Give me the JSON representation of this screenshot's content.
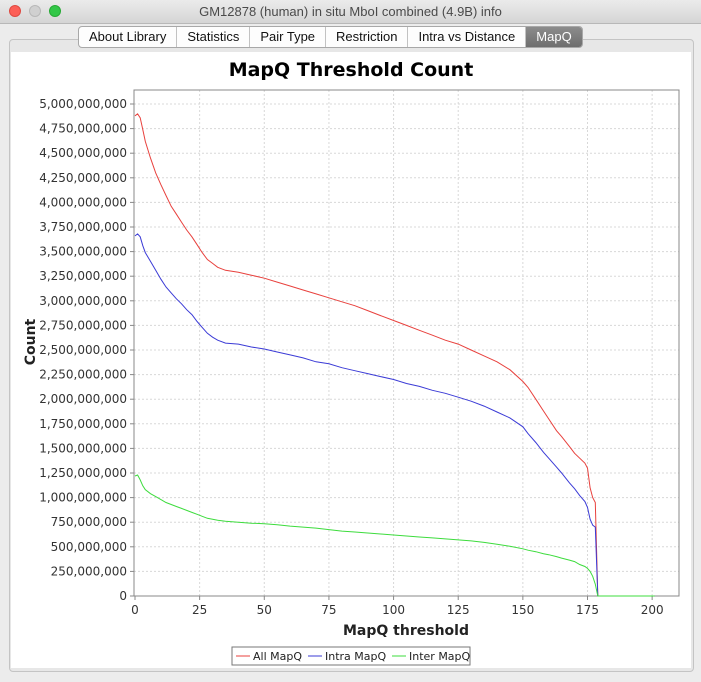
{
  "window": {
    "title": "GM12878 (human)  in situ MboI combined (4.9B) info"
  },
  "tabs": [
    {
      "label": "About Library"
    },
    {
      "label": "Statistics"
    },
    {
      "label": "Pair Type"
    },
    {
      "label": "Restriction"
    },
    {
      "label": "Intra vs Distance"
    },
    {
      "label": "MapQ",
      "active": true
    }
  ],
  "colors": {
    "all": "#e8413d",
    "intra": "#3b3bd6",
    "inter": "#3ddc3d"
  },
  "chart_data": {
    "type": "line",
    "title": "MapQ Threshold Count",
    "xlabel": "MapQ threshold",
    "ylabel": "Count",
    "xlim": [
      0,
      210
    ],
    "ylim": [
      0,
      5000000000
    ],
    "grid": true,
    "legend": "bottom",
    "xticks": [
      "0",
      "25",
      "50",
      "75",
      "100",
      "125",
      "150",
      "175",
      "200"
    ],
    "yticks": [
      "0",
      "250,000,000",
      "500,000,000",
      "750,000,000",
      "1,000,000,000",
      "1,250,000,000",
      "1,500,000,000",
      "1,750,000,000",
      "2,000,000,000",
      "2,250,000,000",
      "2,500,000,000",
      "2,750,000,000",
      "3,000,000,000",
      "3,250,000,000",
      "3,500,000,000",
      "3,750,000,000",
      "4,000,000,000",
      "4,250,000,000",
      "4,500,000,000",
      "4,750,000,000",
      "5,000,000,000"
    ],
    "series": [
      {
        "name": "All MapQ",
        "x": [
          0,
          1,
          2,
          3,
          4,
          6,
          8,
          10,
          12,
          14,
          16,
          18,
          20,
          22,
          24,
          26,
          28,
          30,
          32,
          35,
          40,
          45,
          50,
          55,
          60,
          65,
          70,
          75,
          80,
          85,
          90,
          95,
          100,
          105,
          110,
          115,
          120,
          125,
          130,
          135,
          140,
          145,
          150,
          152,
          155,
          158,
          160,
          163,
          165,
          168,
          170,
          172,
          174,
          175,
          176,
          177,
          178,
          179,
          180,
          185,
          200,
          201
        ],
        "y": [
          4880000000,
          4900000000,
          4860000000,
          4740000000,
          4620000000,
          4450000000,
          4300000000,
          4180000000,
          4070000000,
          3960000000,
          3880000000,
          3800000000,
          3720000000,
          3650000000,
          3570000000,
          3490000000,
          3420000000,
          3380000000,
          3340000000,
          3310000000,
          3290000000,
          3260000000,
          3230000000,
          3190000000,
          3150000000,
          3110000000,
          3070000000,
          3030000000,
          2990000000,
          2950000000,
          2900000000,
          2850000000,
          2800000000,
          2750000000,
          2700000000,
          2650000000,
          2600000000,
          2560000000,
          2500000000,
          2440000000,
          2380000000,
          2300000000,
          2180000000,
          2120000000,
          2000000000,
          1880000000,
          1800000000,
          1680000000,
          1620000000,
          1520000000,
          1450000000,
          1400000000,
          1350000000,
          1300000000,
          1100000000,
          1000000000,
          950000000,
          0,
          0,
          0,
          0,
          0
        ]
      },
      {
        "name": "Intra MapQ",
        "x": [
          0,
          1,
          2,
          3,
          4,
          6,
          8,
          10,
          12,
          14,
          16,
          18,
          20,
          22,
          24,
          26,
          28,
          30,
          32,
          35,
          40,
          45,
          50,
          55,
          60,
          65,
          70,
          75,
          80,
          85,
          90,
          95,
          100,
          105,
          110,
          115,
          120,
          125,
          130,
          135,
          140,
          145,
          150,
          152,
          155,
          158,
          160,
          163,
          165,
          168,
          170,
          172,
          174,
          175,
          176,
          177,
          178,
          179,
          180,
          185,
          200,
          201
        ],
        "y": [
          3660000000,
          3680000000,
          3650000000,
          3560000000,
          3490000000,
          3400000000,
          3310000000,
          3220000000,
          3140000000,
          3080000000,
          3020000000,
          2970000000,
          2910000000,
          2860000000,
          2790000000,
          2730000000,
          2670000000,
          2630000000,
          2600000000,
          2570000000,
          2560000000,
          2530000000,
          2510000000,
          2480000000,
          2450000000,
          2420000000,
          2380000000,
          2360000000,
          2320000000,
          2290000000,
          2260000000,
          2230000000,
          2200000000,
          2160000000,
          2130000000,
          2090000000,
          2060000000,
          2020000000,
          1980000000,
          1930000000,
          1870000000,
          1810000000,
          1720000000,
          1650000000,
          1560000000,
          1460000000,
          1400000000,
          1310000000,
          1250000000,
          1150000000,
          1090000000,
          1020000000,
          960000000,
          900000000,
          780000000,
          720000000,
          700000000,
          0,
          0,
          0,
          0,
          0
        ]
      },
      {
        "name": "Inter MapQ",
        "x": [
          0,
          1,
          2,
          3,
          4,
          6,
          8,
          10,
          12,
          14,
          16,
          18,
          20,
          22,
          24,
          26,
          28,
          30,
          32,
          35,
          40,
          45,
          50,
          55,
          60,
          65,
          70,
          75,
          80,
          85,
          90,
          95,
          100,
          105,
          110,
          115,
          120,
          125,
          130,
          135,
          140,
          145,
          150,
          152,
          155,
          158,
          160,
          163,
          165,
          168,
          170,
          172,
          174,
          175,
          176,
          177,
          178,
          179,
          180,
          185,
          200,
          201
        ],
        "y": [
          1220000000,
          1230000000,
          1180000000,
          1120000000,
          1080000000,
          1040000000,
          1010000000,
          980000000,
          950000000,
          930000000,
          910000000,
          890000000,
          870000000,
          850000000,
          830000000,
          810000000,
          790000000,
          780000000,
          770000000,
          760000000,
          750000000,
          740000000,
          735000000,
          725000000,
          710000000,
          700000000,
          690000000,
          675000000,
          660000000,
          650000000,
          640000000,
          630000000,
          620000000,
          610000000,
          600000000,
          590000000,
          580000000,
          570000000,
          560000000,
          545000000,
          525000000,
          505000000,
          480000000,
          465000000,
          450000000,
          430000000,
          420000000,
          400000000,
          385000000,
          365000000,
          350000000,
          320000000,
          300000000,
          280000000,
          250000000,
          200000000,
          120000000,
          0,
          0,
          0,
          0,
          0
        ]
      }
    ]
  }
}
